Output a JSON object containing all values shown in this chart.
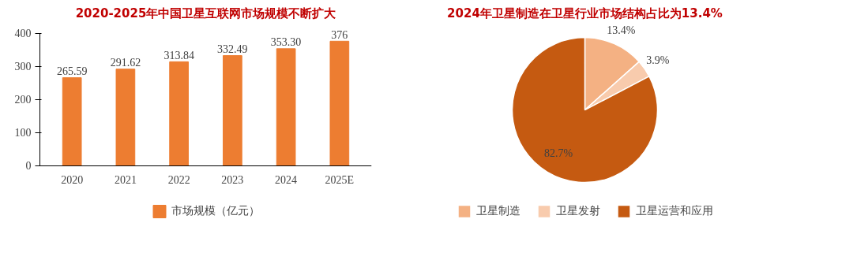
{
  "chart_data": [
    {
      "type": "bar",
      "title": "2020-2025年中国卫星互联网市场规模不断扩大",
      "categories": [
        "2020",
        "2021",
        "2022",
        "2023",
        "2024",
        "2025E"
      ],
      "series": [
        {
          "name": "市场规模（亿元）",
          "color": "#ed7d31",
          "values": [
            265.59,
            291.62,
            313.84,
            332.49,
            353.3,
            376
          ],
          "value_labels": [
            "265.59",
            "291.62",
            "313.84",
            "332.49",
            "353.30",
            "376"
          ]
        }
      ],
      "ylim": [
        0,
        400
      ],
      "yticks": [
        0,
        100,
        200,
        300,
        400
      ],
      "grid": false,
      "legend": "bottom"
    },
    {
      "type": "pie",
      "title": "2024年卫星制造在卫星行业市场结构占比为13.4%",
      "categories": [
        "卫星制造",
        "卫星发射",
        "卫星运营和应用"
      ],
      "values": [
        13.4,
        3.9,
        82.7
      ],
      "colors": [
        "#f4b183",
        "#f8cbad",
        "#c55a11"
      ],
      "value_labels": [
        "13.4%",
        "3.9%",
        "82.7%"
      ],
      "legend": "bottom"
    }
  ]
}
